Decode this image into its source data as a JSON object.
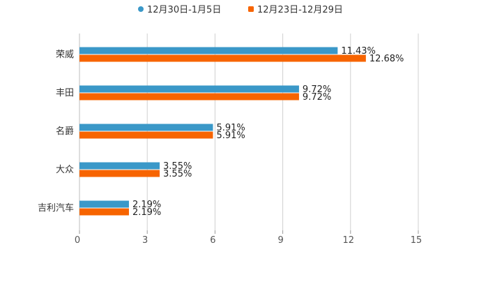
{
  "chart_data": {
    "type": "bar",
    "orientation": "horizontal",
    "categories": [
      "荣威",
      "丰田",
      "名爵",
      "大众",
      "吉利汽车"
    ],
    "series": [
      {
        "name": "12月30日-1月5日",
        "color": "#3a98c8",
        "values": [
          11.43,
          9.72,
          5.91,
          3.55,
          2.19
        ],
        "labels": [
          "11.43%",
          "9.72%",
          "5.91%",
          "3.55%",
          "2.19%"
        ]
      },
      {
        "name": "12月23日-12月29日",
        "color": "#f76400",
        "values": [
          12.68,
          9.72,
          5.91,
          3.55,
          2.19
        ],
        "labels": [
          "12.68%",
          "9.72%",
          "5.91%",
          "3.55%",
          "2.19%"
        ]
      }
    ],
    "xlim": [
      0,
      15
    ],
    "xticks": [
      "0",
      "3",
      "6",
      "9",
      "12",
      "15"
    ],
    "grid": true,
    "legend_position": "top-center",
    "title": "",
    "xlabel": "",
    "ylabel": ""
  }
}
